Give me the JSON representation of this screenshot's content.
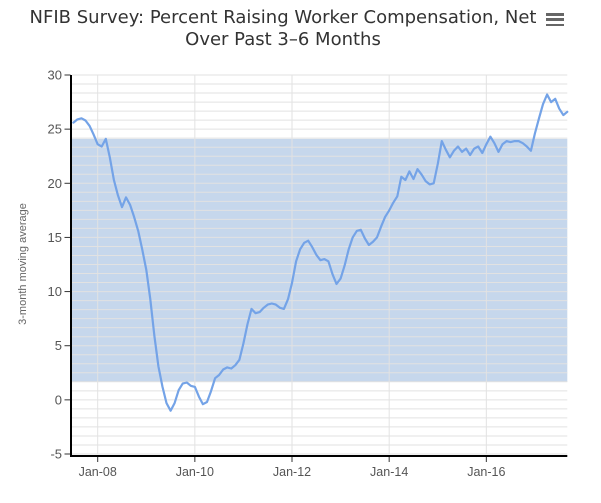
{
  "chart": {
    "title_line1": "NFIB Survey: Percent Raising Worker Compensation, Net",
    "title_line2": "Over Past 3–6 Months",
    "menu_icon": "hamburger-menu-icon",
    "colors": {
      "series": "#74a3e7",
      "band": "#c6d7ec",
      "grid": "#e2e2e2",
      "axis": "#000000",
      "title_text": "#333333",
      "axis_label": "#555555",
      "axis_title_text": "#666666",
      "menu": "#666666"
    }
  },
  "chart_data": {
    "type": "line",
    "title": "NFIB Survey: Percent Raising Worker Compensation, Net Over Past 3–6 Months",
    "ylabel": "3-month moving average",
    "xlabel": "",
    "ylim": [
      -5,
      30
    ],
    "y_ticks": [
      30,
      25,
      20,
      15,
      10,
      5,
      0,
      -5
    ],
    "x_tick_labels": [
      "Jan-08",
      "Jan-10",
      "Jan-12",
      "Jan-14",
      "Jan-16"
    ],
    "plot_band": {
      "from": 1.65,
      "to": 24.1
    },
    "grid": true,
    "legend": false,
    "frequency": "monthly",
    "x_start": "2007-07",
    "x_end": "2017-09",
    "series": [
      {
        "name": "3-month moving average",
        "values": [
          25.6,
          25.9,
          26.0,
          25.8,
          25.3,
          24.5,
          23.6,
          23.4,
          24.1,
          22.4,
          20.3,
          18.9,
          17.8,
          18.7,
          18.0,
          16.9,
          15.6,
          13.9,
          12.0,
          9.3,
          5.9,
          3.1,
          1.2,
          -0.3,
          -1.0,
          -0.3,
          0.9,
          1.5,
          1.6,
          1.3,
          1.2,
          0.3,
          -0.4,
          -0.2,
          0.8,
          2.0,
          2.3,
          2.8,
          3.0,
          2.9,
          3.2,
          3.7,
          5.2,
          7.0,
          8.4,
          8.0,
          8.1,
          8.5,
          8.8,
          8.9,
          8.8,
          8.5,
          8.4,
          9.3,
          10.8,
          12.8,
          13.9,
          14.5,
          14.7,
          14.1,
          13.4,
          12.9,
          13.0,
          12.8,
          11.6,
          10.7,
          11.2,
          12.4,
          13.9,
          15.0,
          15.6,
          15.7,
          14.9,
          14.3,
          14.6,
          15.0,
          16.0,
          16.9,
          17.5,
          18.2,
          18.8,
          20.6,
          20.3,
          21.1,
          20.4,
          21.3,
          20.8,
          20.2,
          19.9,
          20.0,
          21.8,
          23.9,
          23.1,
          22.4,
          23.0,
          23.4,
          22.9,
          23.2,
          22.6,
          23.2,
          23.4,
          22.8,
          23.6,
          24.3,
          23.7,
          22.9,
          23.6,
          23.9,
          23.8,
          23.9,
          23.9,
          23.7,
          23.4,
          23.0,
          24.6,
          26.0,
          27.3,
          28.2,
          27.5,
          27.8,
          26.9,
          26.3,
          26.6
        ]
      }
    ]
  }
}
